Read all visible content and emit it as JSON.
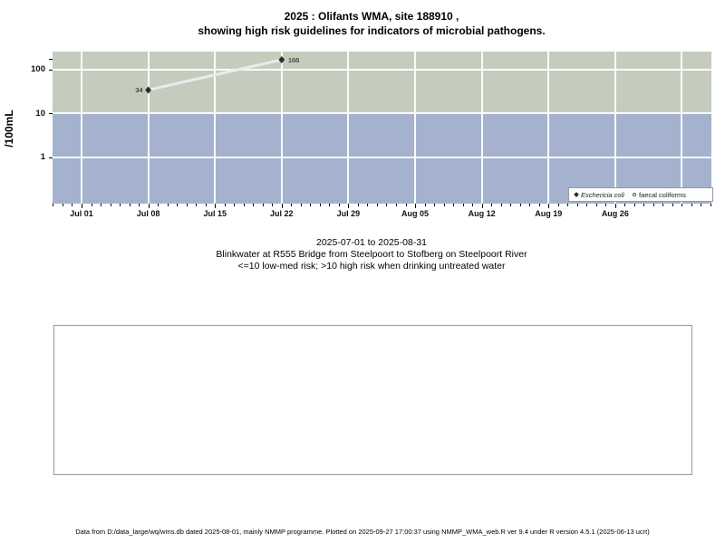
{
  "title": {
    "line1": "2025 : Olifants WMA, site 188910 ,",
    "line2": "showing high risk guidelines for indicators of microbial pathogens."
  },
  "chart_data": {
    "type": "line",
    "yscale": "log",
    "ylabel": "/100mL",
    "ylim": [
      0.2,
      250
    ],
    "yticks": [
      100,
      10,
      1
    ],
    "x_start": "2025-07-01",
    "x_end": "2025-08-31",
    "xticks": [
      {
        "date": "2025-07-01",
        "label": "Jul 01"
      },
      {
        "date": "2025-07-08",
        "label": "Jul 08"
      },
      {
        "date": "2025-07-15",
        "label": "Jul 15"
      },
      {
        "date": "2025-07-22",
        "label": "Jul 22"
      },
      {
        "date": "2025-07-29",
        "label": "Jul 29"
      },
      {
        "date": "2025-08-05",
        "label": "Aug 05"
      },
      {
        "date": "2025-08-12",
        "label": "Aug 12"
      },
      {
        "date": "2025-08-19",
        "label": "Aug 19"
      },
      {
        "date": "2025-08-26",
        "label": "Aug 26"
      }
    ],
    "series": [
      {
        "name": "Eschericia coli",
        "marker": "filled-diamond",
        "points": [
          {
            "date": "2025-07-08",
            "value": 34,
            "label": "34",
            "label_side": "left"
          },
          {
            "date": "2025-07-22",
            "value": 166,
            "label": "166",
            "label_side": "right"
          }
        ]
      },
      {
        "name": "faecal coliforms",
        "marker": "open-circle",
        "points": []
      }
    ],
    "band_boundary": 10,
    "risk_bands": [
      {
        "range": ">10",
        "meaning": "high risk",
        "color": "#c5ccbd"
      },
      {
        "range": "<=10",
        "meaning": "low-med risk",
        "color": "#a4b2cd"
      }
    ],
    "line_color": "#ebebeb",
    "marker_color": "#2b2b2b",
    "grid": true,
    "legend_position": "bottom-right"
  },
  "legend": {
    "items": [
      {
        "marker": "filled-diamond",
        "label": "Eschericia coli",
        "italic": true
      },
      {
        "marker": "open-circle",
        "label": "faecal coliforms",
        "italic": false
      }
    ]
  },
  "subtitle": {
    "line1": "2025-07-01 to 2025-08-31",
    "line2": "Blinkwater at R555 Bridge from Steelpoort to Stofberg on Steelpoort River",
    "line3": "<=10 low-med risk; >10 high risk when drinking untreated water"
  },
  "footer": {
    "text": "Data from D:/data_large/wq/wms.db dated 2025-08-01, mainly NMMP programme. Plotted on 2025-09-27 17:00:37 using NMMP_WMA_web.R ver 9.4 under R version 4.5.1 (2025-06-13 ucrt)"
  }
}
